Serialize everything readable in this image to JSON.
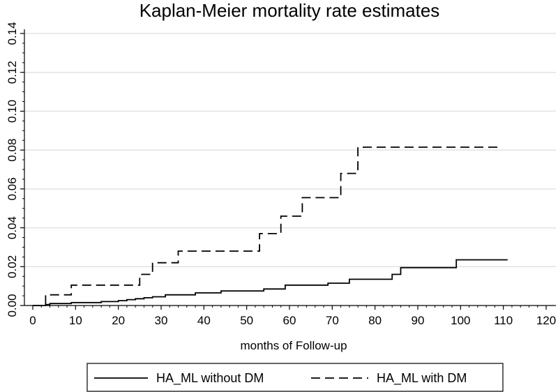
{
  "chart_data": {
    "type": "line",
    "title": "Kaplan-Meier mortality rate estimates",
    "xlabel": "months of Follow-up",
    "ylabel": "",
    "xlim": [
      0,
      120
    ],
    "ylim": [
      0,
      0.14
    ],
    "xticks": [
      "0",
      "10",
      "20",
      "30",
      "40",
      "50",
      "60",
      "70",
      "80",
      "90",
      "100",
      "110",
      "120"
    ],
    "yticks": [
      "0.00",
      "0.02",
      "0.04",
      "0.06",
      "0.08",
      "0.10",
      "0.12",
      "0.14"
    ],
    "grid": true,
    "legend_position": "bottom",
    "series": [
      {
        "name": "HA_ML without DM",
        "style": "solid",
        "points": [
          [
            0,
            0
          ],
          [
            3,
            0
          ],
          [
            3,
            0.0005
          ],
          [
            4,
            0.0005
          ],
          [
            4,
            0.001
          ],
          [
            9,
            0.001
          ],
          [
            9,
            0.0015
          ],
          [
            16,
            0.0015
          ],
          [
            16,
            0.002
          ],
          [
            20,
            0.002
          ],
          [
            20,
            0.0025
          ],
          [
            22,
            0.0025
          ],
          [
            22,
            0.003
          ],
          [
            24,
            0.003
          ],
          [
            24,
            0.0035
          ],
          [
            26,
            0.0035
          ],
          [
            26,
            0.004
          ],
          [
            28,
            0.004
          ],
          [
            28,
            0.0045
          ],
          [
            31,
            0.0045
          ],
          [
            31,
            0.0055
          ],
          [
            38,
            0.0055
          ],
          [
            38,
            0.0065
          ],
          [
            44,
            0.0065
          ],
          [
            44,
            0.0075
          ],
          [
            54,
            0.0075
          ],
          [
            54,
            0.0085
          ],
          [
            59,
            0.0085
          ],
          [
            59,
            0.0105
          ],
          [
            69,
            0.0105
          ],
          [
            69,
            0.0115
          ],
          [
            74,
            0.0115
          ],
          [
            74,
            0.0135
          ],
          [
            84,
            0.0135
          ],
          [
            84,
            0.016
          ],
          [
            86,
            0.016
          ],
          [
            86,
            0.0195
          ],
          [
            99,
            0.0195
          ],
          [
            99,
            0.0235
          ],
          [
            111,
            0.0235
          ]
        ]
      },
      {
        "name": "HA_ML with DM",
        "style": "dashed",
        "points": [
          [
            0,
            0
          ],
          [
            3,
            0
          ],
          [
            3,
            0.0055
          ],
          [
            9,
            0.0055
          ],
          [
            9,
            0.0105
          ],
          [
            25,
            0.0105
          ],
          [
            25,
            0.016
          ],
          [
            28,
            0.016
          ],
          [
            28,
            0.022
          ],
          [
            34,
            0.022
          ],
          [
            34,
            0.028
          ],
          [
            53,
            0.028
          ],
          [
            53,
            0.037
          ],
          [
            58,
            0.037
          ],
          [
            58,
            0.046
          ],
          [
            63,
            0.046
          ],
          [
            63,
            0.0555
          ],
          [
            72,
            0.0555
          ],
          [
            72,
            0.068
          ],
          [
            76,
            0.068
          ],
          [
            76,
            0.0815
          ],
          [
            109,
            0.0815
          ]
        ]
      }
    ]
  }
}
